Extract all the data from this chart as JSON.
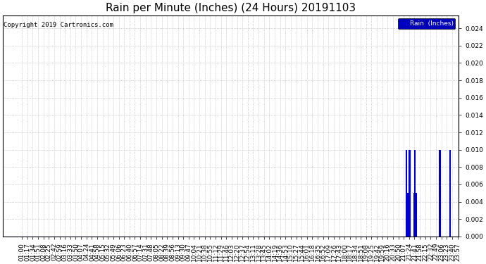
{
  "title": "Rain per Minute (Inches) (24 Hours) 20191103",
  "copyright_text": "Copyright 2019 Cartronics.com",
  "legend_label": "Rain  (Inches)",
  "legend_bg": "#0000bb",
  "legend_text_color": "#ffffff",
  "line_color": "#0000cc",
  "bg_color": "#ffffff",
  "plot_bg_color": "#ffffff",
  "grid_color": "#999999",
  "ylim": [
    0,
    0.0255
  ],
  "yticks": [
    0.0,
    0.002,
    0.004,
    0.006,
    0.008,
    0.01,
    0.012,
    0.014,
    0.016,
    0.018,
    0.02,
    0.022,
    0.024
  ],
  "rain_events": [
    {
      "minute": 1275,
      "value": 0.01
    },
    {
      "minute": 1280,
      "value": 0.005
    },
    {
      "minute": 1285,
      "value": 0.01
    },
    {
      "minute": 1287,
      "value": 0.01
    },
    {
      "minute": 1300,
      "value": 0.005
    },
    {
      "minute": 1302,
      "value": 0.01
    },
    {
      "minute": 1306,
      "value": 0.005
    },
    {
      "minute": 1380,
      "value": 0.01
    },
    {
      "minute": 1382,
      "value": 0.01
    },
    {
      "minute": 1413,
      "value": 0.01
    }
  ],
  "total_minutes": 1440,
  "x_tick_start": 60,
  "x_tick_interval": 17,
  "title_fontsize": 11,
  "axis_fontsize": 6.5,
  "copyright_fontsize": 6.5
}
